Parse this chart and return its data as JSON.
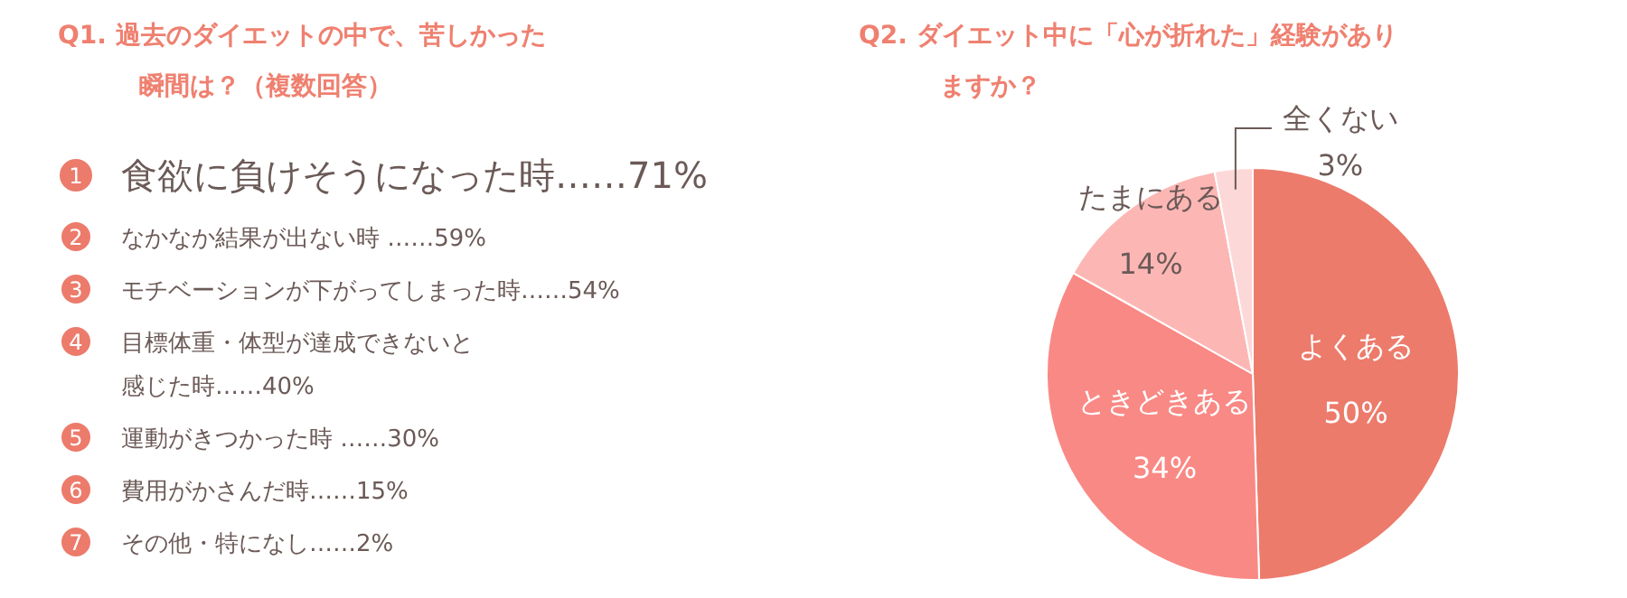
{
  "chart_data": [
    {
      "type": "other",
      "title": "Q1.  過去のダイエットの中で、苦しかった",
      "subtitle": "瞬間は？（複数回答）",
      "categories": [
        "1",
        "2",
        "3",
        "4",
        null,
        "5",
        "6",
        "7"
      ],
      "annotations": [
        "食欲に負けそうになった時……71%",
        "なかなか結果が出ない時 ……59%",
        "モチベーションが下がってしまった時……54%",
        "目標体重・体型が達成できないと",
        "感じた時……40%",
        "運動がきつかった時 ……30%",
        "費用がかさんだ時……15%",
        "その他・特になし……2%"
      ]
    },
    {
      "type": "pie",
      "title": "Q2.  ダイエット中に「心が折れた」経験があり",
      "subtitle": "ますか？",
      "categories": [
        "よくある",
        "ときどきある",
        "たまにある",
        "全くない"
      ],
      "values": [
        50,
        34,
        14,
        3
      ],
      "value_labels": [
        "50%",
        "34%",
        "14%",
        "3%"
      ],
      "colors": [
        "#ec7b6b",
        "#f98985",
        "#fcb7b5",
        "#fdd8d8"
      ],
      "data_labels": true
    }
  ]
}
